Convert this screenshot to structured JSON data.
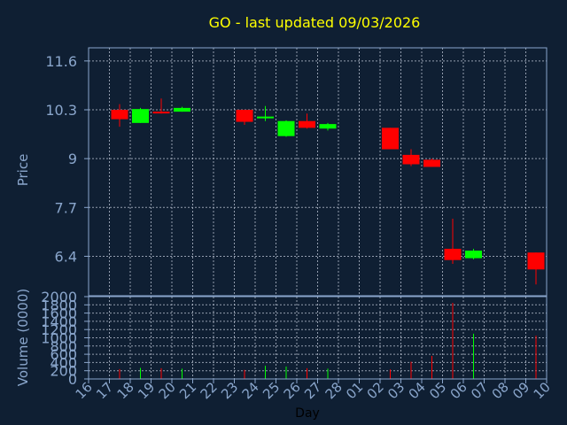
{
  "chart_data": {
    "type": "candlestick",
    "title": "GO - last updated 09/03/2026",
    "xlabel": "Day",
    "ylabel_price": "Price",
    "ylabel_volume": "Volume (0000)",
    "price_ticks": [
      "11.6",
      "10.3",
      "9",
      "7.7",
      "6.4"
    ],
    "price_tick_values": [
      11.6,
      10.3,
      9,
      7.7,
      6.4
    ],
    "price_range": [
      5.35,
      11.95
    ],
    "volume_ticks": [
      "2000",
      "1800",
      "1600",
      "1400",
      "1200",
      "1000",
      "800",
      "600",
      "400",
      "200",
      "0"
    ],
    "volume_tick_values": [
      2000,
      1800,
      1600,
      1400,
      1200,
      1000,
      800,
      600,
      400,
      200,
      0
    ],
    "volume_range": [
      0,
      2000
    ],
    "x_labels": [
      "16",
      "17",
      "18",
      "19",
      "20",
      "21",
      "22",
      "23",
      "24",
      "25",
      "26",
      "27",
      "28",
      "01",
      "02",
      "03",
      "04",
      "05",
      "06",
      "07",
      "08",
      "09",
      "10"
    ],
    "grid": true,
    "colors": {
      "background": "#0f1f33",
      "text": "#8aa6cc",
      "title": "#ffff00",
      "axis": "#8aa6cc",
      "grid": "#c0c8d8",
      "up": "#00ff00",
      "down": "#ff0000"
    },
    "candles": [
      {
        "day": "17",
        "open": 10.3,
        "high": 10.45,
        "low": 9.85,
        "close": 10.05,
        "volume": 240
      },
      {
        "day": "18",
        "open": 9.95,
        "high": 10.35,
        "low": 9.95,
        "close": 10.32,
        "volume": 270
      },
      {
        "day": "19",
        "open": 10.25,
        "high": 10.6,
        "low": 10.2,
        "close": 10.22,
        "volume": 260
      },
      {
        "day": "20",
        "open": 10.25,
        "high": 10.38,
        "low": 10.25,
        "close": 10.35,
        "volume": 250
      },
      {
        "day": "23",
        "open": 10.3,
        "high": 10.3,
        "low": 9.9,
        "close": 9.98,
        "volume": 220
      },
      {
        "day": "24",
        "open": 10.08,
        "high": 10.4,
        "low": 10.0,
        "close": 10.12,
        "volume": 320
      },
      {
        "day": "25",
        "open": 9.6,
        "high": 10.02,
        "low": 9.58,
        "close": 10.0,
        "volume": 300
      },
      {
        "day": "26",
        "open": 10.0,
        "high": 10.2,
        "low": 9.8,
        "close": 9.82,
        "volume": 260
      },
      {
        "day": "27",
        "open": 9.8,
        "high": 9.95,
        "low": 9.75,
        "close": 9.92,
        "volume": 250
      },
      {
        "day": "02",
        "open": 9.82,
        "high": 9.82,
        "low": 9.25,
        "close": 9.25,
        "volume": 230
      },
      {
        "day": "03",
        "open": 9.1,
        "high": 9.25,
        "low": 8.8,
        "close": 8.85,
        "volume": 420
      },
      {
        "day": "04",
        "open": 8.97,
        "high": 9.0,
        "low": 8.78,
        "close": 8.78,
        "volume": 560
      },
      {
        "day": "05",
        "open": 6.6,
        "high": 7.4,
        "low": 6.2,
        "close": 6.3,
        "volume": 1850
      },
      {
        "day": "06",
        "open": 6.35,
        "high": 6.6,
        "low": 6.32,
        "close": 6.55,
        "volume": 1100
      },
      {
        "day": "09",
        "open": 6.5,
        "high": 6.5,
        "low": 5.65,
        "close": 6.05,
        "volume": 1050
      }
    ]
  }
}
